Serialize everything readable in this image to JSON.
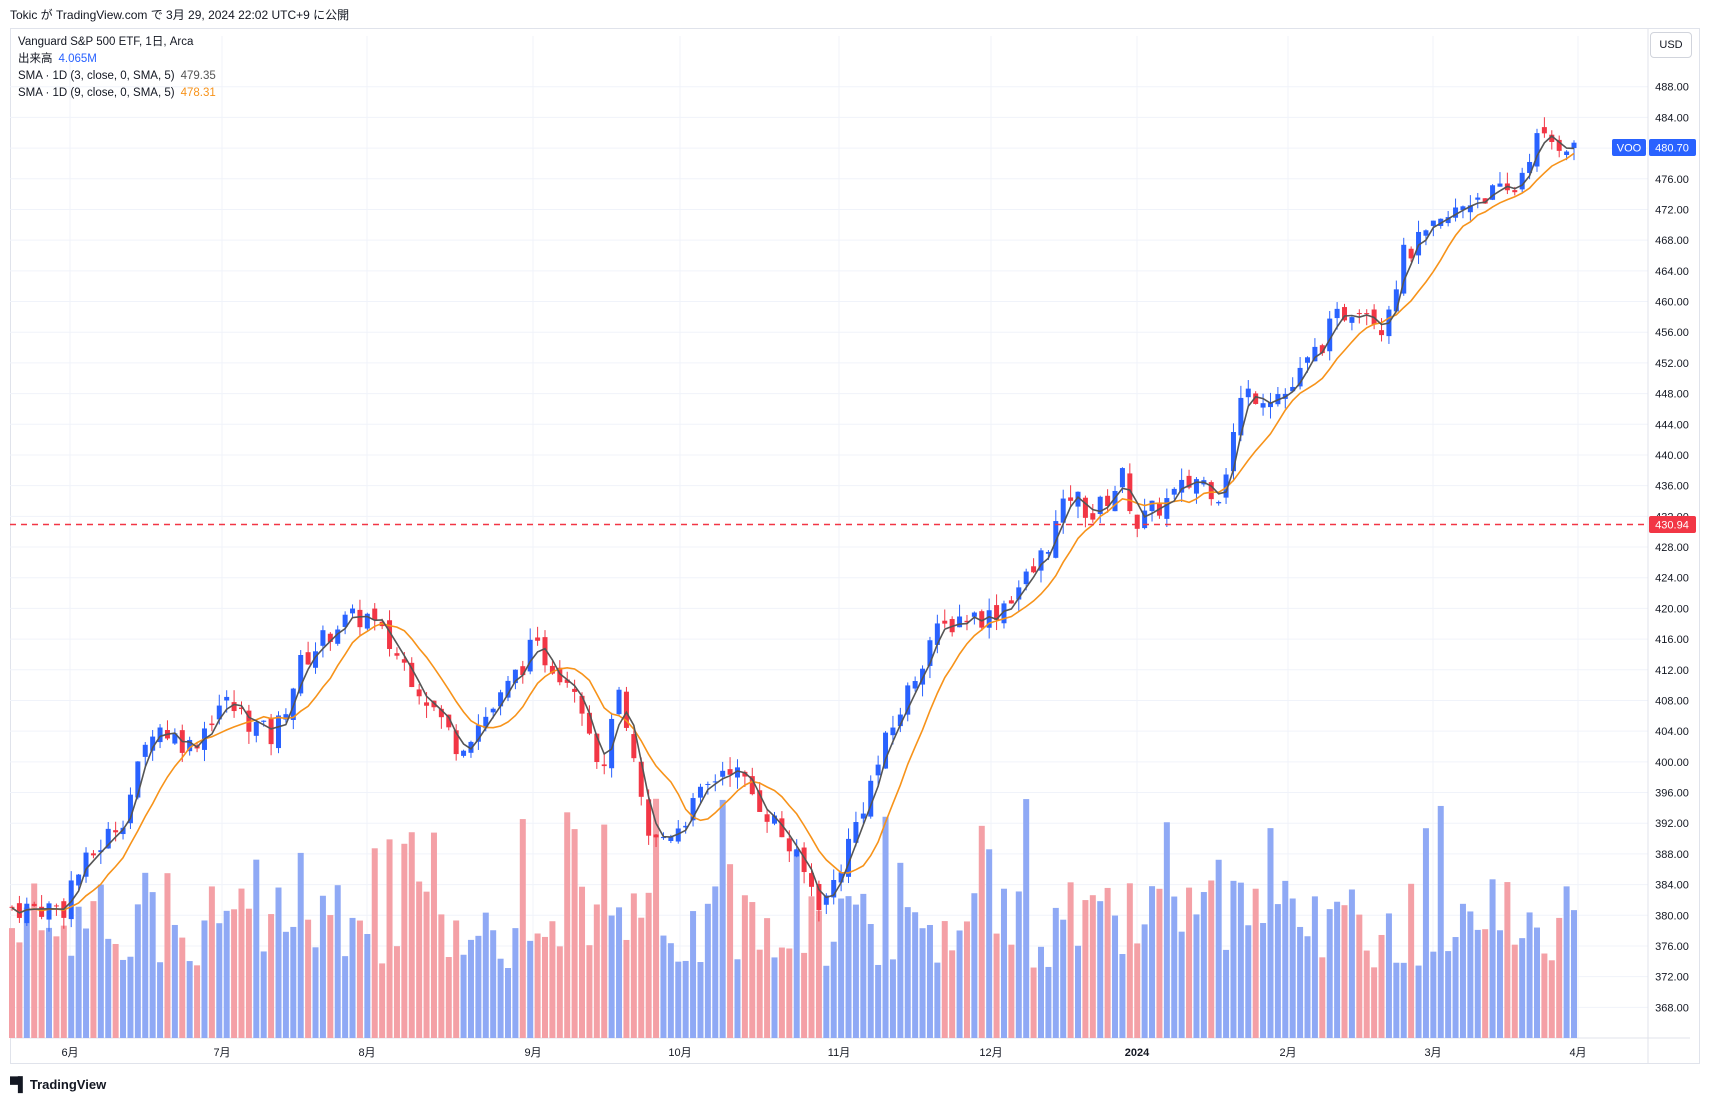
{
  "header": {
    "publisher_line": "Tokic が TradingView.com で 3月 29, 2024 22:02 UTC+9 に公開"
  },
  "legend": {
    "symbol_line": "Vanguard S&P 500 ETF, 1日, Arca",
    "volume_label": "出来高",
    "volume_value": "4.065M",
    "sma3_label": "SMA · 1D (3, close, 0, SMA, 5)",
    "sma3_value": "479.35",
    "sma9_label": "SMA · 1D (9, close, 0, SMA, 5)",
    "sma9_value": "478.31"
  },
  "currency_button": "USD",
  "price_tags": {
    "symbol": "VOO",
    "last_price": "480.70",
    "line_price": "430.94"
  },
  "footer": {
    "brand": "TradingView"
  },
  "colors": {
    "up": "#2962ff",
    "down": "#f23645",
    "sma3": "#555555",
    "sma9": "#f7931a",
    "vol_up": "#8fa9f5",
    "vol_down": "#f4a0a6",
    "dashed_line": "#f23645"
  },
  "chart_data": {
    "type": "candlestick",
    "x_axis_labels": [
      "6月",
      "7月",
      "8月",
      "9月",
      "10月",
      "11月",
      "12月",
      "2024",
      "2月",
      "3月",
      "4月"
    ],
    "y_axis": {
      "min": 364,
      "max": 492,
      "step": 4,
      "tick_labels": [
        "368.00",
        "372.00",
        "376.00",
        "380.00",
        "384.00",
        "388.00",
        "392.00",
        "396.00",
        "400.00",
        "404.00",
        "408.00",
        "412.00",
        "416.00",
        "420.00",
        "424.00",
        "428.00",
        "432.00",
        "436.00",
        "440.00",
        "444.00",
        "448.00",
        "452.00",
        "456.00",
        "460.00",
        "464.00",
        "468.00",
        "472.00",
        "476.00",
        "480.00",
        "484.00",
        "488.00"
      ]
    },
    "horizontal_line": 430.94,
    "last_close": 480.7,
    "price_anchors": [
      {
        "month_index": 0,
        "pos": -0.4,
        "price": 381
      },
      {
        "month_index": 0,
        "pos": 0.0,
        "price": 384
      },
      {
        "month_index": 0,
        "pos": 0.35,
        "price": 393
      },
      {
        "month_index": 0,
        "pos": 0.55,
        "price": 405
      },
      {
        "month_index": 1,
        "pos": -0.2,
        "price": 402
      },
      {
        "month_index": 1,
        "pos": 0.0,
        "price": 408
      },
      {
        "month_index": 1,
        "pos": 0.35,
        "price": 403
      },
      {
        "month_index": 1,
        "pos": 0.55,
        "price": 413
      },
      {
        "month_index": 2,
        "pos": -0.2,
        "price": 418
      },
      {
        "month_index": 2,
        "pos": 0.0,
        "price": 419
      },
      {
        "month_index": 2,
        "pos": 0.25,
        "price": 412
      },
      {
        "month_index": 2,
        "pos": 0.55,
        "price": 402
      },
      {
        "month_index": 3,
        "pos": -0.2,
        "price": 408
      },
      {
        "month_index": 3,
        "pos": 0.0,
        "price": 415
      },
      {
        "month_index": 3,
        "pos": 0.3,
        "price": 410
      },
      {
        "month_index": 3,
        "pos": 0.55,
        "price": 411
      },
      {
        "month_index": 4,
        "pos": -0.5,
        "price": 397
      },
      {
        "month_index": 4,
        "pos": -0.2,
        "price": 389
      },
      {
        "month_index": 4,
        "pos": 0.0,
        "price": 392
      },
      {
        "month_index": 4,
        "pos": 0.3,
        "price": 400
      },
      {
        "month_index": 4,
        "pos": 0.6,
        "price": 392
      },
      {
        "month_index": 5,
        "pos": -0.1,
        "price": 381
      },
      {
        "month_index": 5,
        "pos": 0.0,
        "price": 386
      },
      {
        "month_index": 5,
        "pos": 0.3,
        "price": 402
      },
      {
        "month_index": 5,
        "pos": 0.6,
        "price": 416
      },
      {
        "month_index": 6,
        "pos": -0.2,
        "price": 419
      },
      {
        "month_index": 6,
        "pos": 0.0,
        "price": 419
      },
      {
        "month_index": 6,
        "pos": 0.3,
        "price": 425
      },
      {
        "month_index": 6,
        "pos": 0.55,
        "price": 435
      },
      {
        "month_index": 6,
        "pos": 0.7,
        "price": 432
      },
      {
        "month_index": 7,
        "pos": -0.1,
        "price": 437
      },
      {
        "month_index": 7,
        "pos": 0.0,
        "price": 431
      },
      {
        "month_index": 7,
        "pos": 0.4,
        "price": 437
      },
      {
        "month_index": 7,
        "pos": 0.55,
        "price": 435
      },
      {
        "month_index": 8,
        "pos": -0.3,
        "price": 448
      },
      {
        "month_index": 8,
        "pos": 0.0,
        "price": 448
      },
      {
        "month_index": 8,
        "pos": 0.35,
        "price": 458
      },
      {
        "month_index": 8,
        "pos": 0.5,
        "price": 460
      },
      {
        "month_index": 8,
        "pos": 0.65,
        "price": 457
      },
      {
        "month_index": 9,
        "pos": -0.2,
        "price": 466
      },
      {
        "month_index": 9,
        "pos": 0.0,
        "price": 469
      },
      {
        "month_index": 9,
        "pos": 0.3,
        "price": 474
      },
      {
        "month_index": 9,
        "pos": 0.55,
        "price": 474
      },
      {
        "month_index": 9,
        "pos": 0.7,
        "price": 481
      },
      {
        "month_index": 10,
        "pos": -0.1,
        "price": 480.7
      }
    ],
    "sma3_last": 479.35,
    "sma9_last": 478.31,
    "volume_last": "4.065M"
  }
}
